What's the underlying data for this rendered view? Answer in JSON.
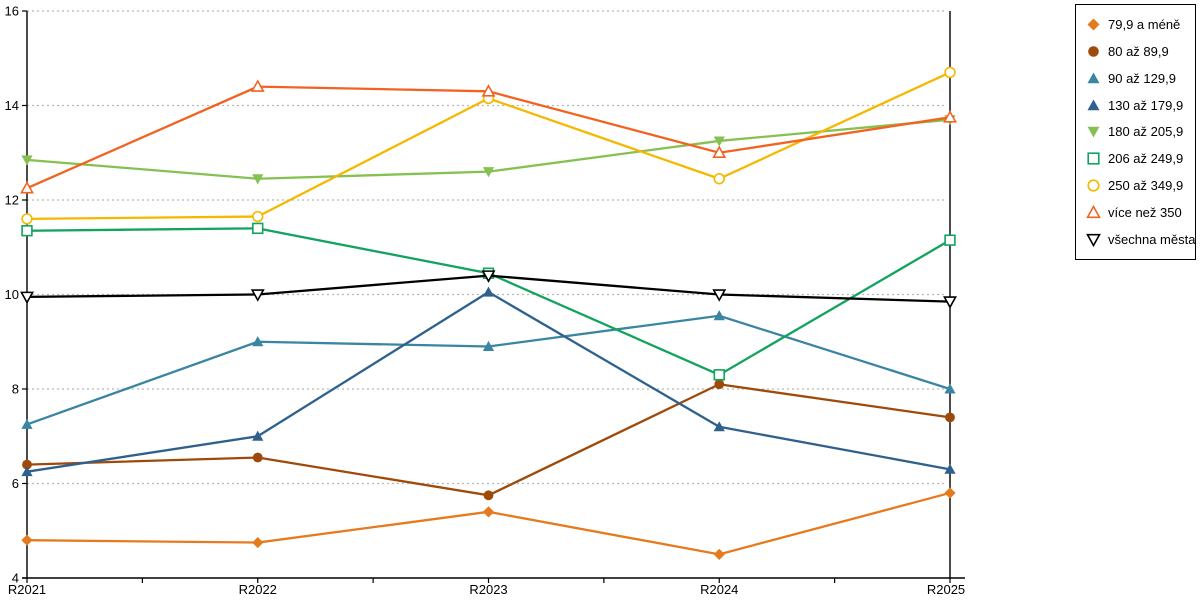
{
  "chart_data": {
    "type": "line",
    "title": "",
    "xlabel": "",
    "ylabel": "",
    "categories": [
      "R2021",
      "R2022",
      "R2023",
      "R2024",
      "R2025"
    ],
    "ylim": [
      4,
      16
    ],
    "y_ticks": [
      4,
      6,
      8,
      10,
      12,
      14,
      16
    ],
    "grid": "horizontal-dashed",
    "legend_position": "top-right",
    "series": [
      {
        "name": "79,9 a méně",
        "color": "#E67A1E",
        "marker": "diamond",
        "values": [
          4.8,
          4.75,
          5.4,
          4.5,
          5.8
        ]
      },
      {
        "name": "80 až 89,9",
        "color": "#9E4A0B",
        "marker": "circle",
        "values": [
          6.4,
          6.55,
          5.75,
          8.1,
          7.4
        ]
      },
      {
        "name": "90 až 129,9",
        "color": "#3A85A2",
        "marker": "triangle-up",
        "values": [
          7.25,
          9.0,
          8.9,
          9.55,
          8.0
        ]
      },
      {
        "name": "130 až 179,9",
        "color": "#2F618C",
        "marker": "triangle-up",
        "values": [
          6.25,
          7.0,
          10.05,
          7.2,
          6.3
        ]
      },
      {
        "name": "180 až 205,9",
        "color": "#85C150",
        "marker": "triangle-down",
        "values": [
          12.85,
          12.45,
          12.6,
          13.25,
          13.7
        ]
      },
      {
        "name": "206 až 249,9",
        "color": "#12A35F",
        "marker": "square-open",
        "values": [
          11.35,
          11.4,
          10.45,
          8.3,
          11.15
        ]
      },
      {
        "name": "250 až 349,9",
        "color": "#F5B800",
        "marker": "circle-open",
        "values": [
          11.6,
          11.65,
          14.15,
          12.45,
          14.7
        ]
      },
      {
        "name": "více než 350",
        "color": "#F26322",
        "marker": "triangle-up-open",
        "values": [
          12.25,
          14.4,
          14.3,
          13.0,
          13.75
        ]
      },
      {
        "name": "všechna města",
        "color": "#000000",
        "marker": "triangle-down-open",
        "values": [
          9.95,
          10.0,
          10.4,
          10.0,
          9.85
        ]
      }
    ],
    "axis_color": "#000000",
    "gridline_color": "#b8b8b8"
  }
}
